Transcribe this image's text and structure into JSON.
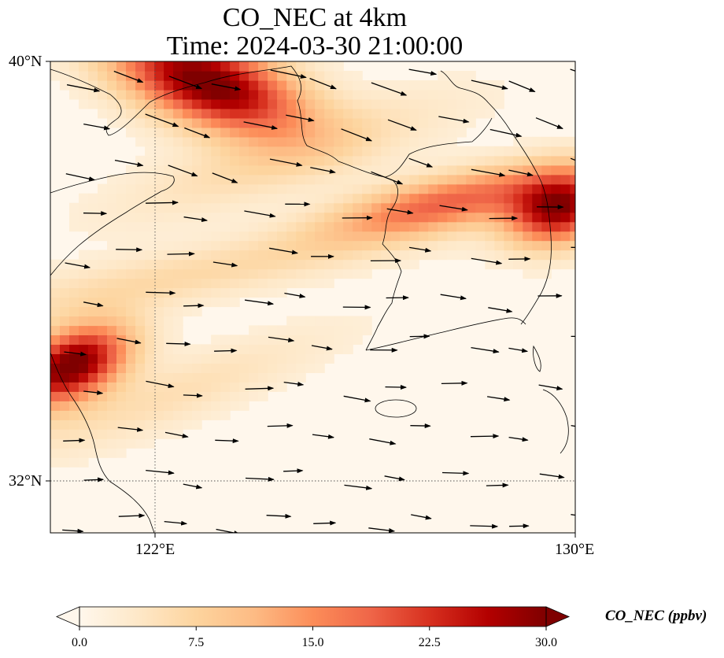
{
  "title": {
    "line1": "CO_NEC at 4km",
    "line2": "Time: 2024-03-30 21:00:00"
  },
  "map": {
    "lon_range": [
      120,
      130
    ],
    "lat_range": [
      31,
      40
    ],
    "lat_ticks": [
      {
        "value": 40,
        "label": "40°N"
      },
      {
        "value": 32,
        "label": "32°N"
      }
    ],
    "lon_ticks": [
      {
        "value": 122,
        "label": "122°E"
      },
      {
        "value": 130,
        "label": "130°E"
      }
    ],
    "gridlines": "dotted"
  },
  "colorbar": {
    "label": "CO_NEC (ppbv)",
    "colormap": "OrRd",
    "colors": [
      "#fff7ec",
      "#fee8c8",
      "#fdd49e",
      "#fdbb84",
      "#fc8d59",
      "#ef6548",
      "#d7301f",
      "#b30000",
      "#7f0000"
    ],
    "min": 0,
    "max": 30,
    "extend": "both",
    "ticks": [
      {
        "value": 0,
        "label": "0.0"
      },
      {
        "value": 7.5,
        "label": "7.5"
      },
      {
        "value": 15,
        "label": "15.0"
      },
      {
        "value": 22.5,
        "label": "22.5"
      },
      {
        "value": 30,
        "label": "30.0"
      }
    ]
  },
  "chart_data": {
    "type": "heatmap",
    "variable": "CO_NEC",
    "units": "ppbv",
    "level": "4km",
    "time": "2024-03-30 21:00:00",
    "plumes": [
      {
        "region": "northwest corner, Bohai area",
        "lon": 123.0,
        "lat": 39.6,
        "value": 30
      },
      {
        "region": "west edge near 34.3°N",
        "lon": 120.4,
        "lat": 34.2,
        "value": 30
      },
      {
        "region": "east edge near 37.2°N",
        "lon": 129.7,
        "lat": 37.2,
        "value": 27
      },
      {
        "region": "band across Korean peninsula",
        "lon": 127.5,
        "lat": 37.3,
        "value": 17
      }
    ],
    "wind": "westerly to west-northwesterly, stronger in the north"
  }
}
